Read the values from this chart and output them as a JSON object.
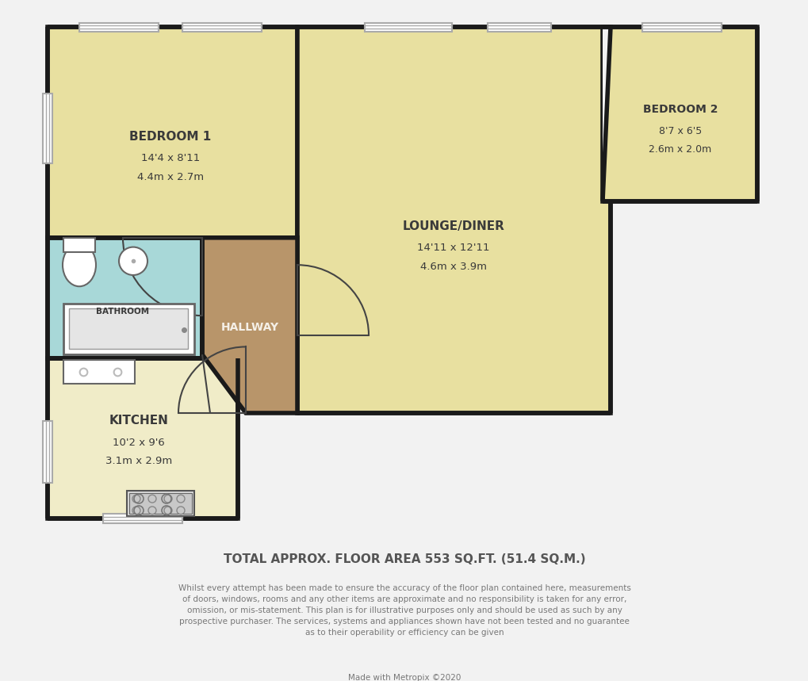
{
  "bg_color": "#f2f2f2",
  "wall_color": "#1a1a1a",
  "room_colors": {
    "bedroom1": "#e8e0a0",
    "bedroom2": "#e8e0a0",
    "lounge": "#e8e0a0",
    "kitchen": "#f0ecc8",
    "bathroom": "#a8d8d8",
    "hallway": "#b8956a"
  },
  "footer_title": "TOTAL APPROX. FLOOR AREA 553 SQ.FT. (51.4 SQ.M.)",
  "footer_body": "Whilst every attempt has been made to ensure the accuracy of the floor plan contained here, measurements\nof doors, windows, rooms and any other items are approximate and no responsibility is taken for any error,\nomission, or mis-statement. This plan is for illustrative purposes only and should be used as such by any\nprospective purchaser. The services, systems and appliances shown have not been tested and no guarantee\nas to their operability or efficiency can be given",
  "footer_made": "Made with Metropix ©2020",
  "label_color": "#3a3a3a",
  "hallway_label_color": "#f5f0e8"
}
